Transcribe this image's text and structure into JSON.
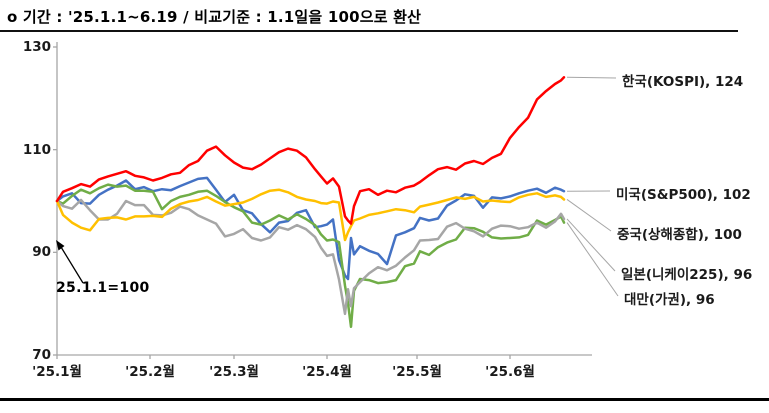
{
  "title": "o 기간 : '25.1.1~6.19 / 비교기준 : 1.1일을 100으로 환산",
  "annotation": {
    "text": "25.1.1=100"
  },
  "chart_data": {
    "type": "line",
    "title": "o 기간 : '25.1.1~6.19 / 비교기준 : 1.1일을 100으로 환산",
    "xlabel": "",
    "ylabel": "",
    "x_unit": "days since 2025-01-01 (data through 2025-06-19)",
    "baseline_value": 100,
    "ylim": [
      70,
      130
    ],
    "yticks": [
      70,
      90,
      110,
      130
    ],
    "xticks": [
      {
        "day": 0,
        "label": "'25.1월"
      },
      {
        "day": 31,
        "label": "'25.2월"
      },
      {
        "day": 59,
        "label": "'25.3월"
      },
      {
        "day": 90,
        "label": "'25.4월"
      },
      {
        "day": 120,
        "label": "'25.5월"
      },
      {
        "day": 151,
        "label": "'25.6월"
      }
    ],
    "grid": false,
    "legend_position": "right-of-line-ends",
    "x_days": [
      0,
      2,
      5,
      8,
      11,
      14,
      17,
      20,
      23,
      26,
      29,
      32,
      35,
      38,
      41,
      44,
      47,
      50,
      53,
      56,
      59,
      62,
      65,
      68,
      71,
      74,
      77,
      80,
      83,
      86,
      88,
      90,
      92,
      94,
      96,
      97,
      98,
      99,
      101,
      104,
      107,
      110,
      113,
      116,
      119,
      121,
      124,
      127,
      130,
      133,
      136,
      139,
      142,
      145,
      148,
      151,
      154,
      157,
      160,
      163,
      166,
      168,
      169
    ],
    "series": [
      {
        "id": "korea",
        "name": "한국(KOSPI)",
        "label": "한국(KOSPI), 124",
        "final": 124,
        "color": "#FF0000",
        "values": [
          100,
          101.8,
          102.5,
          103.3,
          102.8,
          104.2,
          104.8,
          105.3,
          105.8,
          104.9,
          104.6,
          104.0,
          104.5,
          105.2,
          105.5,
          107.0,
          107.8,
          109.8,
          110.6,
          108.9,
          107.5,
          106.5,
          106.2,
          107.1,
          108.3,
          109.5,
          110.2,
          109.8,
          108.5,
          106.2,
          104.8,
          103.4,
          104.4,
          102.8,
          97.0,
          96.2,
          95.6,
          99.0,
          101.9,
          102.3,
          101.2,
          102.0,
          101.7,
          102.6,
          103.0,
          103.7,
          105.0,
          106.2,
          106.6,
          106.1,
          107.3,
          107.8,
          107.2,
          108.4,
          109.2,
          112.3,
          114.4,
          116.2,
          119.8,
          121.4,
          122.8,
          123.5,
          124.1
        ]
      },
      {
        "id": "usa",
        "name": "미국(S&P500)",
        "label": "미국(S&P500), 102",
        "final": 102,
        "color": "#4472C4",
        "values": [
          100,
          100.9,
          101.5,
          99.6,
          99.5,
          101.2,
          102.2,
          103.0,
          104.0,
          102.3,
          102.7,
          101.9,
          102.3,
          102.1,
          102.9,
          103.6,
          104.3,
          104.5,
          102.2,
          99.8,
          101.2,
          98.2,
          97.6,
          95.5,
          93.9,
          95.8,
          96.1,
          97.7,
          98.2,
          94.9,
          95.1,
          95.4,
          96.4,
          88.5,
          85.5,
          84.8,
          92.8,
          89.6,
          91.2,
          90.3,
          89.7,
          87.7,
          93.3,
          93.9,
          94.7,
          96.7,
          96.2,
          96.6,
          99.1,
          100.1,
          101.3,
          101.0,
          98.7,
          100.7,
          100.5,
          100.9,
          101.5,
          102.0,
          102.4,
          101.6,
          102.6,
          102.2,
          101.9
        ]
      },
      {
        "id": "china",
        "name": "중국(상해종합)",
        "label": "중국(상해종합), 100",
        "final": 100,
        "color": "#FFC000",
        "values": [
          100,
          97.3,
          95.8,
          94.8,
          94.3,
          96.5,
          96.7,
          96.8,
          96.4,
          97.0,
          97.0,
          97.1,
          96.9,
          98.5,
          99.4,
          99.9,
          100.2,
          100.8,
          99.9,
          99.1,
          99.4,
          99.7,
          100.4,
          101.3,
          102.0,
          102.2,
          101.7,
          100.8,
          100.3,
          100.0,
          99.6,
          99.5,
          99.9,
          99.7,
          92.4,
          93.9,
          95.1,
          96.2,
          96.6,
          97.3,
          97.6,
          98.0,
          98.4,
          98.2,
          97.8,
          98.9,
          99.3,
          99.7,
          100.2,
          100.7,
          100.4,
          100.8,
          99.9,
          100.1,
          99.9,
          99.8,
          100.7,
          101.2,
          101.5,
          100.8,
          101.1,
          100.8,
          100.3
        ]
      },
      {
        "id": "japan",
        "name": "일본(니케이225)",
        "label": "일본(니케이225), 96",
        "final": 96,
        "color": "#A6A6A6",
        "values": [
          100,
          99.0,
          98.5,
          100.2,
          98.2,
          96.4,
          96.4,
          97.5,
          100.0,
          99.2,
          99.2,
          97.3,
          97.2,
          97.7,
          98.9,
          98.4,
          97.2,
          96.4,
          95.6,
          93.1,
          93.6,
          94.5,
          92.8,
          92.3,
          92.9,
          94.9,
          94.4,
          95.3,
          94.5,
          93.0,
          90.9,
          89.3,
          89.6,
          84.7,
          78.0,
          82.8,
          79.5,
          83.0,
          84.2,
          85.9,
          87.1,
          86.5,
          87.4,
          89.0,
          90.4,
          92.3,
          92.4,
          92.6,
          95.0,
          95.7,
          94.6,
          94.1,
          93.1,
          94.6,
          95.2,
          95.1,
          94.6,
          94.9,
          95.8,
          94.8,
          96.0,
          97.5,
          96.5
        ]
      },
      {
        "id": "taiwan",
        "name": "대만(가권)",
        "label": "대만(가권), 96",
        "final": 96,
        "color": "#70AD47",
        "values": [
          100,
          99.5,
          101.0,
          102.2,
          101.5,
          102.5,
          103.2,
          102.8,
          103.0,
          102.0,
          102.0,
          101.8,
          98.4,
          100.0,
          100.8,
          101.2,
          101.8,
          102.0,
          101.0,
          99.8,
          98.8,
          98.0,
          95.8,
          95.4,
          96.2,
          97.2,
          96.4,
          97.4,
          96.5,
          95.3,
          93.5,
          92.3,
          92.5,
          92.0,
          83.5,
          80.1,
          75.5,
          82.5,
          84.8,
          84.6,
          84.0,
          84.2,
          84.6,
          87.3,
          87.8,
          90.2,
          89.5,
          91.0,
          91.9,
          92.5,
          94.8,
          94.7,
          94.0,
          92.9,
          92.7,
          92.8,
          92.9,
          93.4,
          96.2,
          95.4,
          96.3,
          97.0,
          95.8
        ]
      }
    ]
  }
}
